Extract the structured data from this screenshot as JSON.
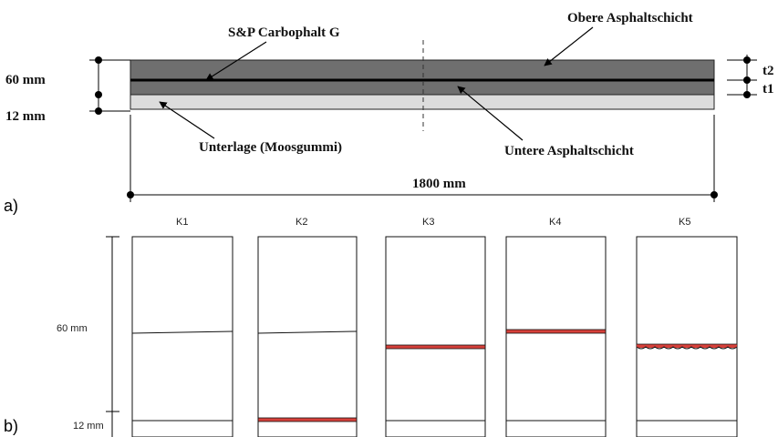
{
  "panel_a": {
    "letter": "a)",
    "labels": {
      "carbophalt": "S&P Carbophalt G",
      "upper_layer": "Obere Asphaltschicht",
      "lower_layer": "Untere Asphaltschicht",
      "underlay": "Unterlage (Moosgummi)",
      "thickness_total": "60 mm",
      "thickness_base": "12 mm",
      "t2": "t2",
      "t1": "t1",
      "length": "1800 mm"
    },
    "colors": {
      "asphalt": "#6f6f6f",
      "underlay": "#d9d9d9",
      "carbon_line": "#000000"
    }
  },
  "panel_b": {
    "letter": "b)",
    "dim_60": "60 mm",
    "dim_12": "12 mm",
    "columns": [
      {
        "label": "K1",
        "interface": "plain",
        "interface_position": "middle",
        "highlight": false
      },
      {
        "label": "K2",
        "interface": "plain",
        "interface_position": "middle",
        "highlight": true,
        "highlight_position": "bottom"
      },
      {
        "label": "K3",
        "interface": "red-band",
        "interface_position": "middle",
        "highlight": true
      },
      {
        "label": "K4",
        "interface": "red-band",
        "interface_position": "upper-middle",
        "highlight": true
      },
      {
        "label": "K5",
        "interface": "red-wavy",
        "interface_position": "middle",
        "highlight": true
      }
    ],
    "colors": {
      "highlight": "#d6403a"
    }
  }
}
